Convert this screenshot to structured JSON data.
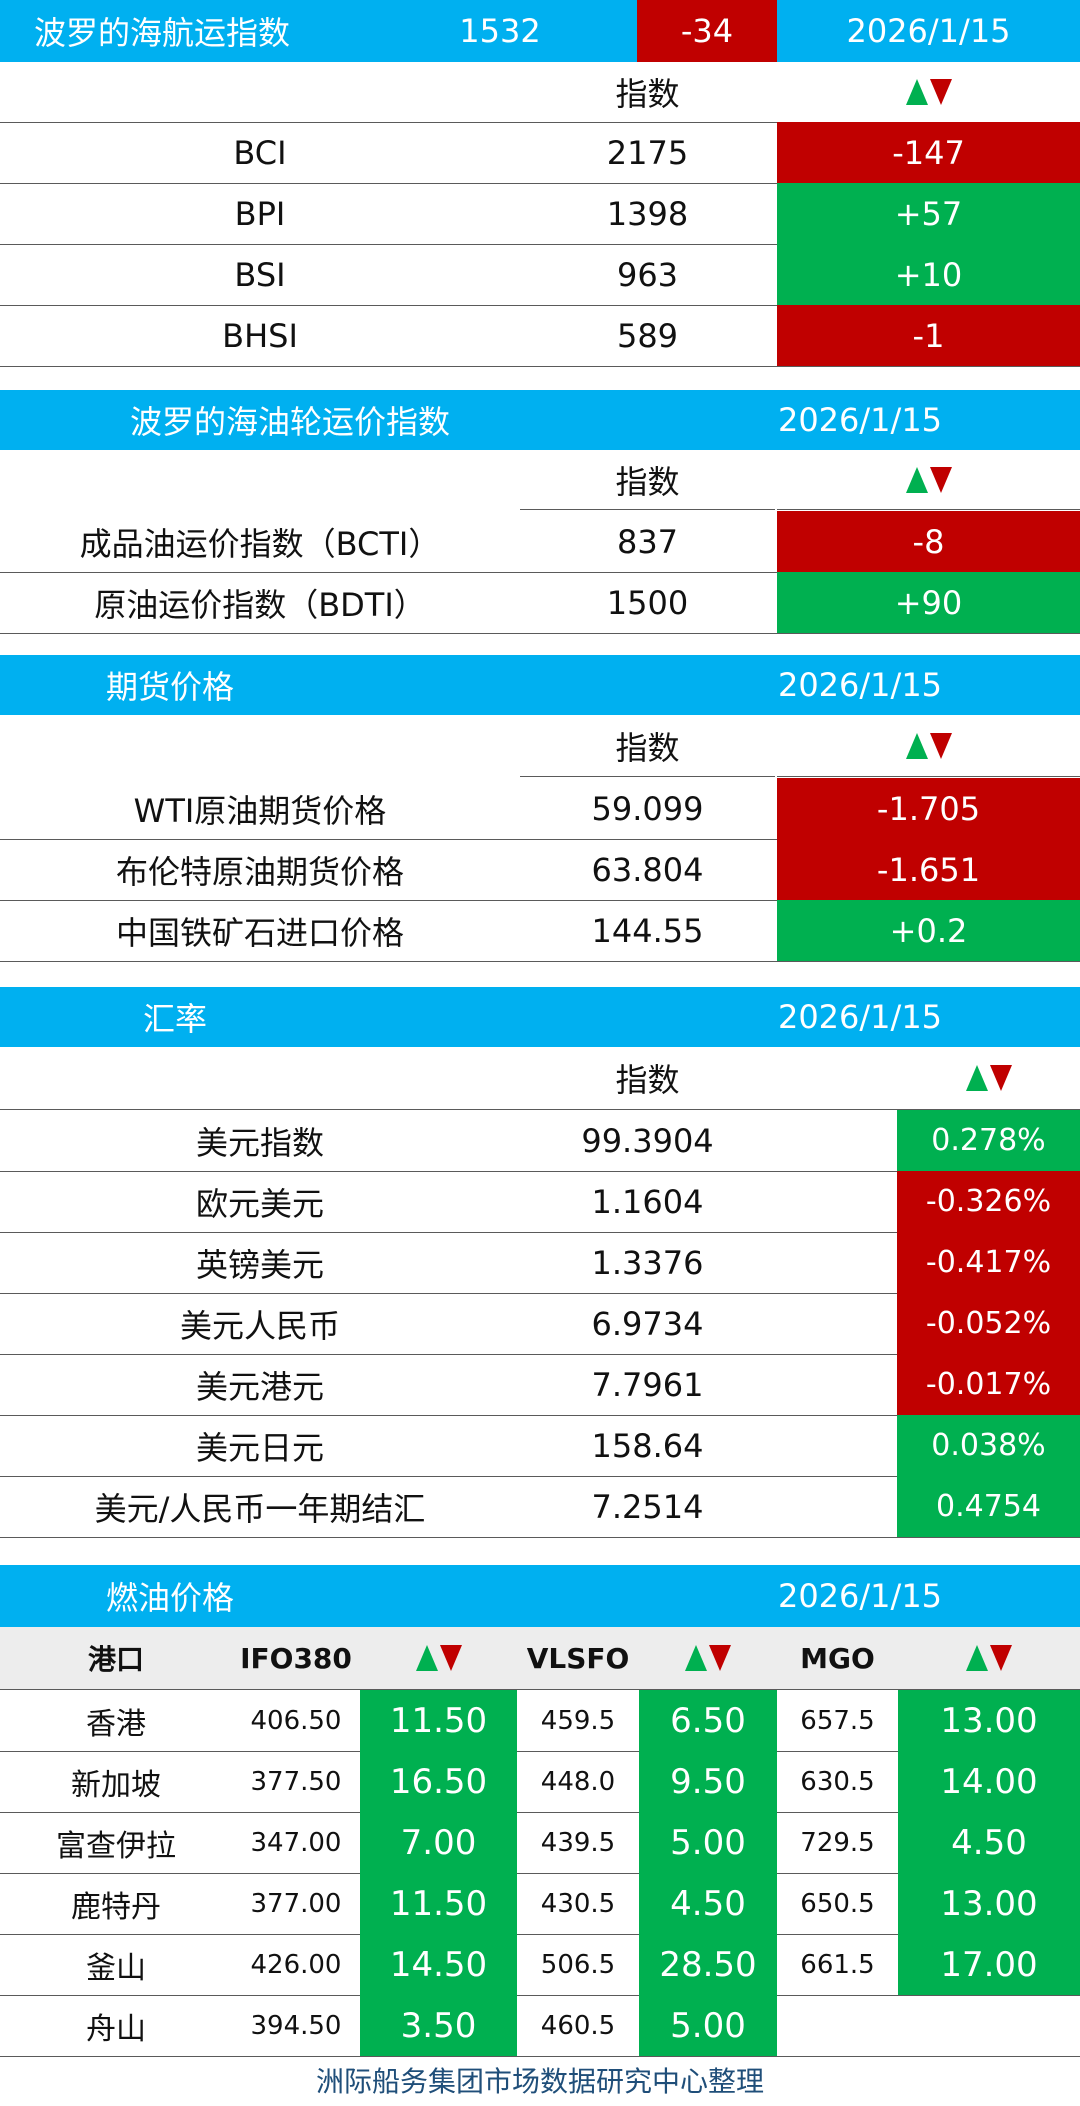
{
  "colors": {
    "header_blue": "#00b0f0",
    "down_red": "#c00000",
    "up_green": "#00b050",
    "footer_text": "#1f4e79"
  },
  "icons": {
    "trend": "up-down-triangle-icon"
  },
  "baltic_dry": {
    "title": "波罗的海航运指数",
    "value": "1532",
    "change": "-34",
    "date": "2026/1/15",
    "col_index": "指数",
    "rows": [
      {
        "name": "BCI",
        "value": "2175",
        "change": "-147"
      },
      {
        "name": "BPI",
        "value": "1398",
        "change": "+57"
      },
      {
        "name": "BSI",
        "value": "963",
        "change": "+10"
      },
      {
        "name": "BHSI",
        "value": "589",
        "change": "-1"
      }
    ]
  },
  "baltic_tanker": {
    "title": "波罗的海油轮运价指数",
    "date": "2026/1/15",
    "col_index": "指数",
    "rows": [
      {
        "name": "成品油运价指数（BCTI）",
        "value": "837",
        "change": "-8"
      },
      {
        "name": "原油运价指数（BDTI）",
        "value": "1500",
        "change": "+90"
      }
    ]
  },
  "futures": {
    "title": "期货价格",
    "date": "2026/1/15",
    "col_index": "指数",
    "rows": [
      {
        "name": "WTI原油期货价格",
        "value": "59.099",
        "change": "-1.705"
      },
      {
        "name": "布伦特原油期货价格",
        "value": "63.804",
        "change": "-1.651"
      },
      {
        "name": "中国铁矿石进口价格",
        "value": "144.55",
        "change": "+0.2"
      }
    ]
  },
  "fx": {
    "title": "汇率",
    "date": "2026/1/15",
    "col_index": "指数",
    "rows": [
      {
        "name": "美元指数",
        "value": "99.3904",
        "change": "0.278%"
      },
      {
        "name": "欧元美元",
        "value": "1.1604",
        "change": "-0.326%"
      },
      {
        "name": "英镑美元",
        "value": "1.3376",
        "change": "-0.417%"
      },
      {
        "name": "美元人民币",
        "value": "6.9734",
        "change": "-0.052%"
      },
      {
        "name": "美元港元",
        "value": "7.7961",
        "change": "-0.017%"
      },
      {
        "name": "美元日元",
        "value": "158.64",
        "change": "0.038%"
      },
      {
        "name": "美元/人民币一年期结汇",
        "value": "7.2514",
        "change": "0.4754"
      }
    ]
  },
  "fuel": {
    "title": "燃油价格",
    "date": "2026/1/15",
    "headers": {
      "port": "港口",
      "ifo": "IFO380",
      "vlsfo": "VLSFO",
      "mgo": "MGO"
    },
    "rows": [
      {
        "port": "香港",
        "ifo": "406.50",
        "ifo_chg": "11.50",
        "vlsfo": "459.5",
        "vlsfo_chg": "6.50",
        "mgo": "657.5",
        "mgo_chg": "13.00"
      },
      {
        "port": "新加坡",
        "ifo": "377.50",
        "ifo_chg": "16.50",
        "vlsfo": "448.0",
        "vlsfo_chg": "9.50",
        "mgo": "630.5",
        "mgo_chg": "14.00"
      },
      {
        "port": "富查伊拉",
        "ifo": "347.00",
        "ifo_chg": "7.00",
        "vlsfo": "439.5",
        "vlsfo_chg": "5.00",
        "mgo": "729.5",
        "mgo_chg": "4.50"
      },
      {
        "port": "鹿特丹",
        "ifo": "377.00",
        "ifo_chg": "11.50",
        "vlsfo": "430.5",
        "vlsfo_chg": "4.50",
        "mgo": "650.5",
        "mgo_chg": "13.00"
      },
      {
        "port": "釜山",
        "ifo": "426.00",
        "ifo_chg": "14.50",
        "vlsfo": "506.5",
        "vlsfo_chg": "28.50",
        "mgo": "661.5",
        "mgo_chg": "17.00"
      },
      {
        "port": "舟山",
        "ifo": "394.50",
        "ifo_chg": "3.50",
        "vlsfo": "460.5",
        "vlsfo_chg": "5.00",
        "mgo": "",
        "mgo_chg": ""
      }
    ]
  },
  "footer": {
    "credit": "洲际船务集团市场数据研究中心整理"
  }
}
